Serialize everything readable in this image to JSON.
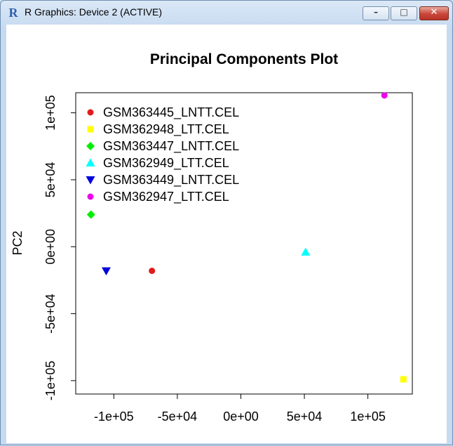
{
  "window": {
    "title": "R Graphics: Device 2 (ACTIVE)",
    "buttons": {
      "minimize": "minimize-icon",
      "maximize": "maximize-icon",
      "close": "close-icon"
    }
  },
  "chart_data": {
    "type": "scatter",
    "title": "Principal Components Plot",
    "xlabel": "",
    "ylabel": "PC2",
    "xlim": [
      -130000,
      135000
    ],
    "ylim": [
      -110000,
      115000
    ],
    "x_ticks": [
      -100000,
      -50000,
      0,
      50000,
      100000
    ],
    "x_tick_labels": [
      "-1e+05",
      "-5e+04",
      "0e+00",
      "5e+04",
      "1e+05"
    ],
    "y_ticks": [
      -100000,
      -50000,
      0,
      50000,
      100000
    ],
    "y_tick_labels": [
      "-1e+05",
      "-5e+04",
      "0e+00",
      "5e+04",
      "1e+05"
    ],
    "legend_position": "top-left",
    "series": [
      {
        "name": "GSM363445_LNTT.CEL",
        "color": "#e31a1c",
        "marker": "circle",
        "x": -70000,
        "y": -18000
      },
      {
        "name": "GSM362948_LTT.CEL",
        "color": "#ffff00",
        "marker": "square",
        "x": 128000,
        "y": -99000
      },
      {
        "name": "GSM363447_LNTT.CEL",
        "color": "#00ee00",
        "marker": "diamond",
        "x": -118000,
        "y": 24000
      },
      {
        "name": "GSM362949_LTT.CEL",
        "color": "#00ffff",
        "marker": "triangle-up",
        "x": 51000,
        "y": -4000
      },
      {
        "name": "GSM363449_LNTT.CEL",
        "color": "#0000dd",
        "marker": "triangle-down",
        "x": -106000,
        "y": -18000
      },
      {
        "name": "GSM362947_LTT.CEL",
        "color": "#ee00ee",
        "marker": "circle",
        "x": 113000,
        "y": 113000
      }
    ]
  }
}
